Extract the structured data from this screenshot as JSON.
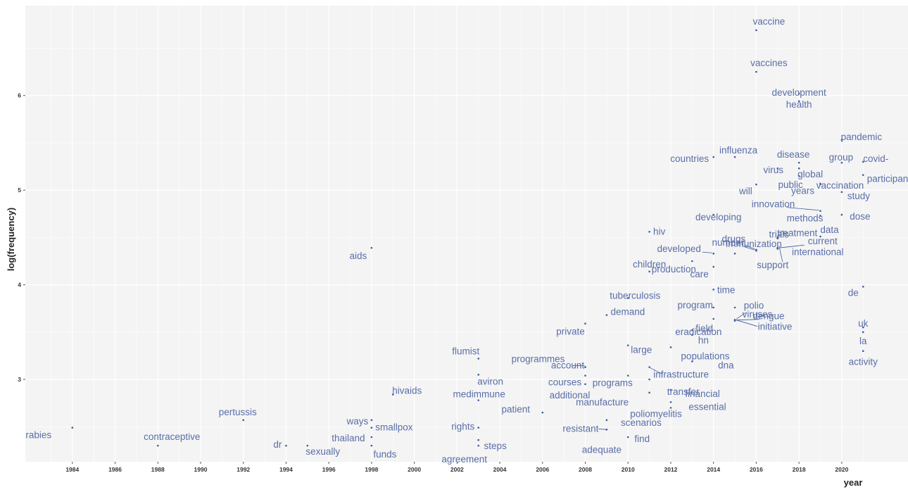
{
  "chart_data": {
    "type": "scatter",
    "title": "",
    "xlabel": "year",
    "ylabel": "log(frequency)",
    "xlim": [
      1981.8,
      2023.1
    ],
    "ylim": [
      2.13,
      6.95
    ],
    "x_ticks": [
      1984,
      1986,
      1988,
      1990,
      1992,
      1994,
      1996,
      1998,
      2000,
      2002,
      2004,
      2006,
      2008,
      2010,
      2012,
      2014,
      2016,
      2018,
      2020
    ],
    "y_ticks": [
      3,
      4,
      5,
      6
    ],
    "grid": true,
    "point_color": "#3f5a9e",
    "label_color": "#5a6ea8",
    "background": "#f4f4f4",
    "points": [
      {
        "word": "vaccine",
        "x": 2016,
        "y": 6.69
      },
      {
        "word": "vaccines",
        "x": 2016,
        "y": 6.25
      },
      {
        "word": "development",
        "x": 2018,
        "y": 5.94
      },
      {
        "word": "health",
        "x": 2018,
        "y": 6.02
      },
      {
        "word": "pandemic",
        "x": 2020,
        "y": 5.53
      },
      {
        "word": "influenza",
        "x": 2015,
        "y": 5.35
      },
      {
        "word": "countries",
        "x": 2014,
        "y": 5.35
      },
      {
        "word": "disease",
        "x": 2018,
        "y": 5.29
      },
      {
        "word": "group",
        "x": 2020,
        "y": 5.29
      },
      {
        "word": "covid-",
        "x": 2021,
        "y": 5.3
      },
      {
        "word": "virus",
        "x": 2017,
        "y": 5.23
      },
      {
        "word": "global",
        "x": 2018,
        "y": 5.23
      },
      {
        "word": "participants",
        "x": 2021,
        "y": 5.16
      },
      {
        "word": "public",
        "x": 2018,
        "y": 5.15
      },
      {
        "word": "will",
        "x": 2016,
        "y": 5.06
      },
      {
        "word": "vaccination",
        "x": 2019,
        "y": 5.06
      },
      {
        "word": "years",
        "x": 2019,
        "y": 5.07
      },
      {
        "word": "study",
        "x": 2020,
        "y": 4.98
      },
      {
        "word": "innovation",
        "x": 2019,
        "y": 4.78
      },
      {
        "word": "methods",
        "x": 2019,
        "y": 4.73
      },
      {
        "word": "dose",
        "x": 2020,
        "y": 4.74
      },
      {
        "word": "developing",
        "x": 2014,
        "y": 4.74
      },
      {
        "word": "hiv",
        "x": 2011,
        "y": 4.56
      },
      {
        "word": "trials",
        "x": 2017,
        "y": 4.49
      },
      {
        "word": "treatment",
        "x": 2017,
        "y": 4.5
      },
      {
        "word": "data",
        "x": 2019,
        "y": 4.51
      },
      {
        "word": "drugs",
        "x": 2016,
        "y": 4.37
      },
      {
        "word": "number",
        "x": 2016,
        "y": 4.36
      },
      {
        "word": "current",
        "x": 2017,
        "y": 4.39
      },
      {
        "word": "developed",
        "x": 2014,
        "y": 4.33
      },
      {
        "word": "immunization",
        "x": 2015,
        "y": 4.33
      },
      {
        "word": "international",
        "x": 2017,
        "y": 4.38
      },
      {
        "word": "aids",
        "x": 1998,
        "y": 4.39
      },
      {
        "word": "production",
        "x": 2013,
        "y": 4.25
      },
      {
        "word": "support",
        "x": 2017,
        "y": 4.39
      },
      {
        "word": "care",
        "x": 2014,
        "y": 4.19
      },
      {
        "word": "children",
        "x": 2011,
        "y": 4.14
      },
      {
        "word": "time",
        "x": 2014,
        "y": 3.95
      },
      {
        "word": "de",
        "x": 2021,
        "y": 3.98
      },
      {
        "word": "tuberculosis",
        "x": 2010,
        "y": 3.86
      },
      {
        "word": "program",
        "x": 2014,
        "y": 3.76
      },
      {
        "word": "viruses",
        "x": 2015,
        "y": 3.76
      },
      {
        "word": "demand",
        "x": 2009,
        "y": 3.68
      },
      {
        "word": "field",
        "x": 2014,
        "y": 3.64
      },
      {
        "word": "polio",
        "x": 2015,
        "y": 3.63
      },
      {
        "word": "eradication",
        "x": 2013,
        "y": 3.52
      },
      {
        "word": "uk",
        "x": 2021,
        "y": 3.55
      },
      {
        "word": "dengue",
        "x": 2015,
        "y": 3.62
      },
      {
        "word": "private",
        "x": 2008,
        "y": 3.59
      },
      {
        "word": "large",
        "x": 2010,
        "y": 3.36
      },
      {
        "word": "hn",
        "x": 2013,
        "y": 3.47
      },
      {
        "word": "initiative",
        "x": 2015,
        "y": 3.62
      },
      {
        "word": "la",
        "x": 2021,
        "y": 3.5
      },
      {
        "word": "programmes",
        "x": 2008,
        "y": 3.13
      },
      {
        "word": "flumist",
        "x": 2003,
        "y": 3.22
      },
      {
        "word": "infrastructure",
        "x": 2011,
        "y": 3.13
      },
      {
        "word": "populations",
        "x": 2012,
        "y": 3.34
      },
      {
        "word": "activity",
        "x": 2021,
        "y": 3.3
      },
      {
        "word": "account",
        "x": 2008,
        "y": 3.13
      },
      {
        "word": "aviron",
        "x": 2003,
        "y": 3.05
      },
      {
        "word": "programs",
        "x": 2010,
        "y": 3.04
      },
      {
        "word": "dna",
        "x": 2013,
        "y": 3.19
      },
      {
        "word": "transfer",
        "x": 2011,
        "y": 3.0
      },
      {
        "word": "courses",
        "x": 2008,
        "y": 3.04
      },
      {
        "word": "hivaids",
        "x": 1999,
        "y": 2.84
      },
      {
        "word": "manufacture",
        "x": 2011,
        "y": 2.86
      },
      {
        "word": "financial",
        "x": 2012,
        "y": 2.89
      },
      {
        "word": "additional",
        "x": 2008,
        "y": 2.95
      },
      {
        "word": "medimmune",
        "x": 2003,
        "y": 2.78
      },
      {
        "word": "essential",
        "x": 2012,
        "y": 2.76
      },
      {
        "word": "patient",
        "x": 2006,
        "y": 2.65
      },
      {
        "word": "pertussis",
        "x": 1992,
        "y": 2.57
      },
      {
        "word": "ways",
        "x": 1998,
        "y": 2.57
      },
      {
        "word": "scenarios",
        "x": 2009,
        "y": 2.57
      },
      {
        "word": "poliomyelitis",
        "x": 2012,
        "y": 2.7
      },
      {
        "word": "rights",
        "x": 2003,
        "y": 2.49
      },
      {
        "word": "smallpox",
        "x": 1998,
        "y": 2.49
      },
      {
        "word": "rabies",
        "x": 1984,
        "y": 2.49
      },
      {
        "word": "resistant",
        "x": 2009,
        "y": 2.47
      },
      {
        "word": "steps",
        "x": 2003,
        "y": 2.36
      },
      {
        "word": "thailand",
        "x": 1998,
        "y": 2.39
      },
      {
        "word": "contraceptive",
        "x": 1988,
        "y": 2.3
      },
      {
        "word": "find",
        "x": 2010,
        "y": 2.39
      },
      {
        "word": "adequate",
        "x": 2009,
        "y": 2.47
      },
      {
        "word": "dr",
        "x": 1994,
        "y": 2.3
      },
      {
        "word": "sexually",
        "x": 1995,
        "y": 2.3
      },
      {
        "word": "funds",
        "x": 1998,
        "y": 2.3
      },
      {
        "word": "agreement",
        "x": 2003,
        "y": 2.3
      }
    ]
  }
}
